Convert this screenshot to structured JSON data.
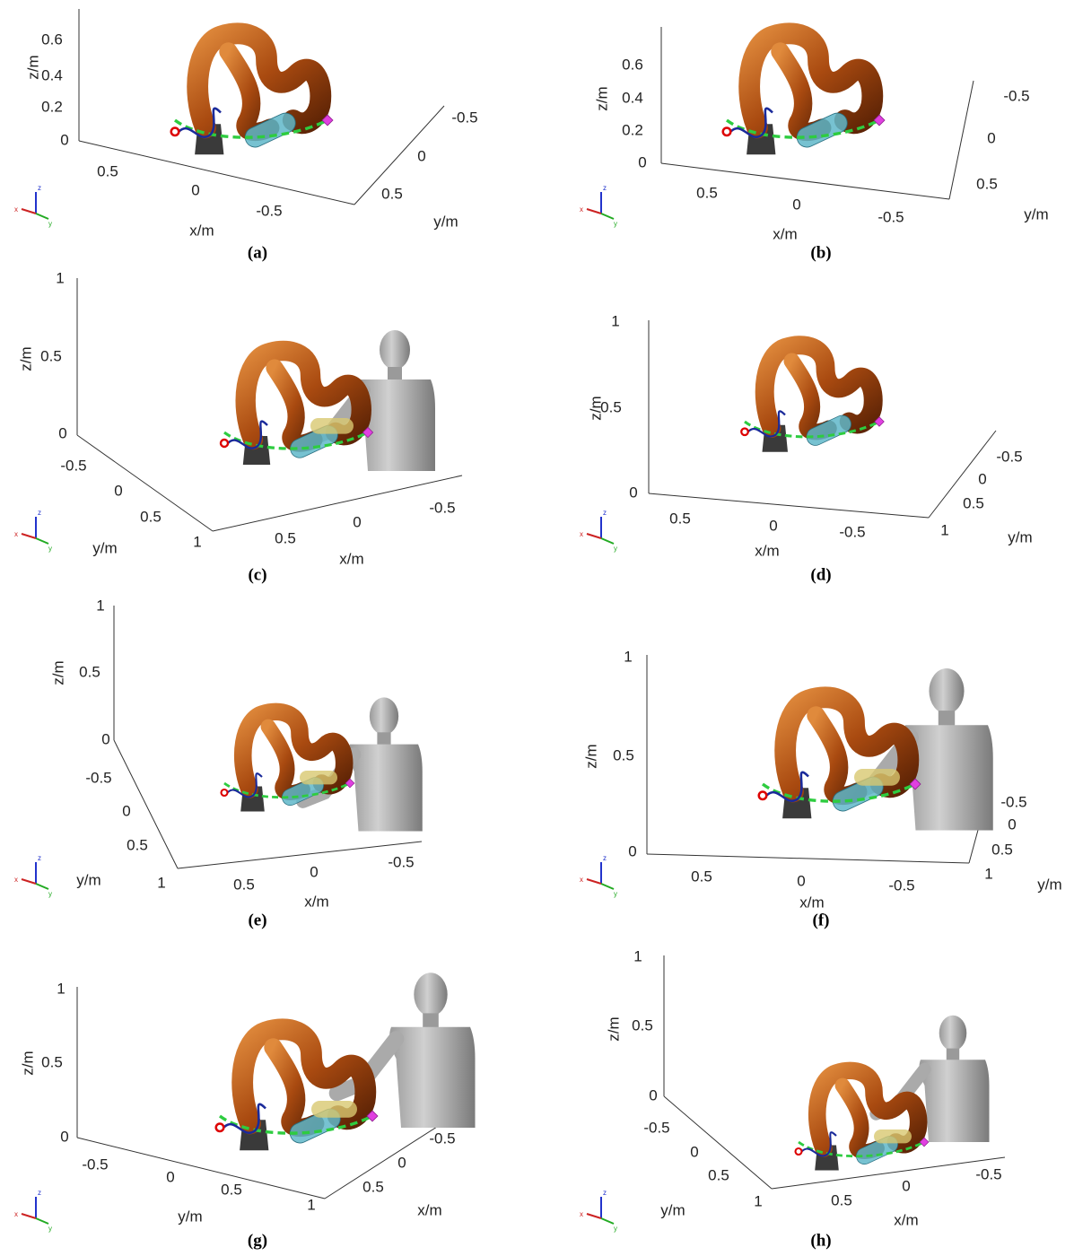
{
  "triad": {
    "x": "x",
    "y": "y",
    "z": "z"
  },
  "panels": [
    {
      "caption": "(a)",
      "z_label": "z/m",
      "x_label": "x/m",
      "y_label": "y/m",
      "z_ticks": [
        "0.6",
        "0.4",
        "0.2",
        "0"
      ],
      "x_ticks": [
        "0.5",
        "0",
        "-0.5"
      ],
      "y_ticks": [
        "-0.5",
        "0",
        "0.5"
      ]
    },
    {
      "caption": "(b)",
      "z_label": "z/m",
      "x_label": "x/m",
      "y_label": "y/m",
      "z_ticks": [
        "0.6",
        "0.4",
        "0.2",
        "0"
      ],
      "x_ticks": [
        "0.5",
        "0",
        "-0.5"
      ],
      "y_ticks": [
        "-0.5",
        "0",
        "0.5"
      ]
    },
    {
      "caption": "(c)",
      "z_label": "z/m",
      "x_label": "x/m",
      "y_label": "y/m",
      "z_ticks": [
        "1",
        "0.5",
        "0"
      ],
      "x_ticks": [
        "0.5",
        "0",
        "-0.5"
      ],
      "y_ticks": [
        "-0.5",
        "0",
        "0.5",
        "1"
      ]
    },
    {
      "caption": "(d)",
      "z_label": "z/m",
      "x_label": "x/m",
      "y_label": "y/m",
      "z_ticks": [
        "1",
        "0.5",
        "0"
      ],
      "x_ticks": [
        "0.5",
        "0",
        "-0.5"
      ],
      "y_ticks": [
        "-0.5",
        "0",
        "0.5",
        "1"
      ]
    },
    {
      "caption": "(e)",
      "z_label": "z/m",
      "x_label": "x/m",
      "y_label": "y/m",
      "z_ticks": [
        "1",
        "0.5",
        "0"
      ],
      "x_ticks": [
        "0.5",
        "0",
        "-0.5"
      ],
      "y_ticks": [
        "-0.5",
        "0",
        "0.5",
        "1"
      ]
    },
    {
      "caption": "(f)",
      "z_label": "z/m",
      "x_label": "x/m",
      "y_label": "y/m",
      "z_ticks": [
        "1",
        "0.5",
        "0"
      ],
      "x_ticks": [
        "0.5",
        "0",
        "-0.5"
      ],
      "y_ticks": [
        "-0.5",
        "0",
        "0.5",
        "1"
      ]
    },
    {
      "caption": "(g)",
      "z_label": "z/m",
      "x_label": "x/m",
      "y_label": "y/m",
      "z_ticks": [
        "1",
        "0.5",
        "0"
      ],
      "x_ticks": [
        "-0.5",
        "0",
        "0.5"
      ],
      "y_ticks": [
        "-0.5",
        "0",
        "0.5",
        "1"
      ]
    },
    {
      "caption": "(h)",
      "z_label": "z/m",
      "x_label": "x/m",
      "y_label": "y/m",
      "z_ticks": [
        "1",
        "0.5",
        "0"
      ],
      "x_ticks": [
        "0.5",
        "0",
        "-0.5"
      ],
      "y_ticks": [
        "-0.5",
        "0",
        "0.5",
        "1"
      ]
    }
  ]
}
